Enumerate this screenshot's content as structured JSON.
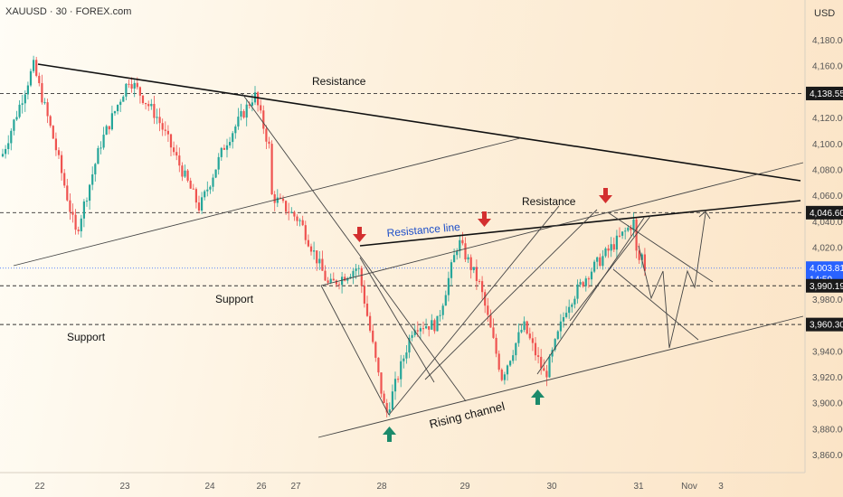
{
  "header": {
    "symbol_title": "XAUUSD · 30 · FOREX.com"
  },
  "axis": {
    "currency": "USD"
  },
  "colors": {
    "up": "#26a69a",
    "down": "#ef5350",
    "line": "#111111",
    "thin": "#444444",
    "arrow_down": "#d32f2f",
    "arrow_up": "#1b8a6b",
    "blue_text": "#1e4fc8",
    "current_price": "#2962ff",
    "axis_text": "#555555"
  },
  "chart_data": {
    "type": "candlestick",
    "title": "XAUUSD · 30 · FOREX.com",
    "ylim": [
      3845,
      4195
    ],
    "y_ticks": [
      3860,
      3880,
      3900,
      3920,
      3940,
      3960,
      3980,
      4000,
      4020,
      4040,
      4060,
      4080,
      4100,
      4120,
      4140,
      4160,
      4180
    ],
    "x_ticks": [
      "22",
      "23",
      "24",
      "26",
      "27",
      "28",
      "29",
      "30",
      "31",
      "Nov",
      "3"
    ],
    "price_labels": [
      {
        "text": "4,138.55",
        "value": 4138.55,
        "style": "dark"
      },
      {
        "text": "4,046.60",
        "value": 4046.6,
        "style": "dark"
      },
      {
        "text": "4,003.81",
        "value": 4003.81,
        "style": "blue",
        "sub": "14:50"
      },
      {
        "text": "3,990.19",
        "value": 3990.19,
        "style": "dark"
      },
      {
        "text": "3,960.30",
        "value": 3960.3,
        "style": "dark"
      }
    ],
    "horizontal_levels": [
      4138.55,
      4046.6,
      3990.19,
      3960.3
    ],
    "swing_path": [
      [
        "22",
        4090
      ],
      [
        "22",
        4160
      ],
      [
        "22",
        4100
      ],
      [
        "22",
        4030
      ],
      [
        "23",
        4100
      ],
      [
        "23",
        4150
      ],
      [
        "23",
        4120
      ],
      [
        "24",
        4050
      ],
      [
        "24",
        4100
      ],
      [
        "26",
        4138
      ],
      [
        "26",
        4090
      ],
      [
        "27",
        4060
      ],
      [
        "27",
        4040
      ],
      [
        "27",
        3990
      ],
      [
        "28",
        4005
      ],
      [
        "28",
        3890
      ],
      [
        "28",
        3960
      ],
      [
        "29",
        3960
      ],
      [
        "29",
        4025
      ],
      [
        "29",
        3990
      ],
      [
        "29",
        3920
      ],
      [
        "30",
        3960
      ],
      [
        "30",
        3920
      ],
      [
        "30",
        3975
      ],
      [
        "30",
        4000
      ],
      [
        "31",
        4040
      ],
      [
        "31",
        4000
      ],
      [
        "31",
        4020
      ],
      [
        "31",
        4003.81
      ]
    ],
    "annotations": [
      {
        "text": "Resistance",
        "kind": "plain"
      },
      {
        "text": "Resistance",
        "kind": "plain"
      },
      {
        "text": "Resistance line",
        "kind": "blue"
      },
      {
        "text": "Support",
        "kind": "plain"
      },
      {
        "text": "Support",
        "kind": "plain"
      },
      {
        "text": "Rising channel",
        "kind": "rotated"
      }
    ]
  }
}
